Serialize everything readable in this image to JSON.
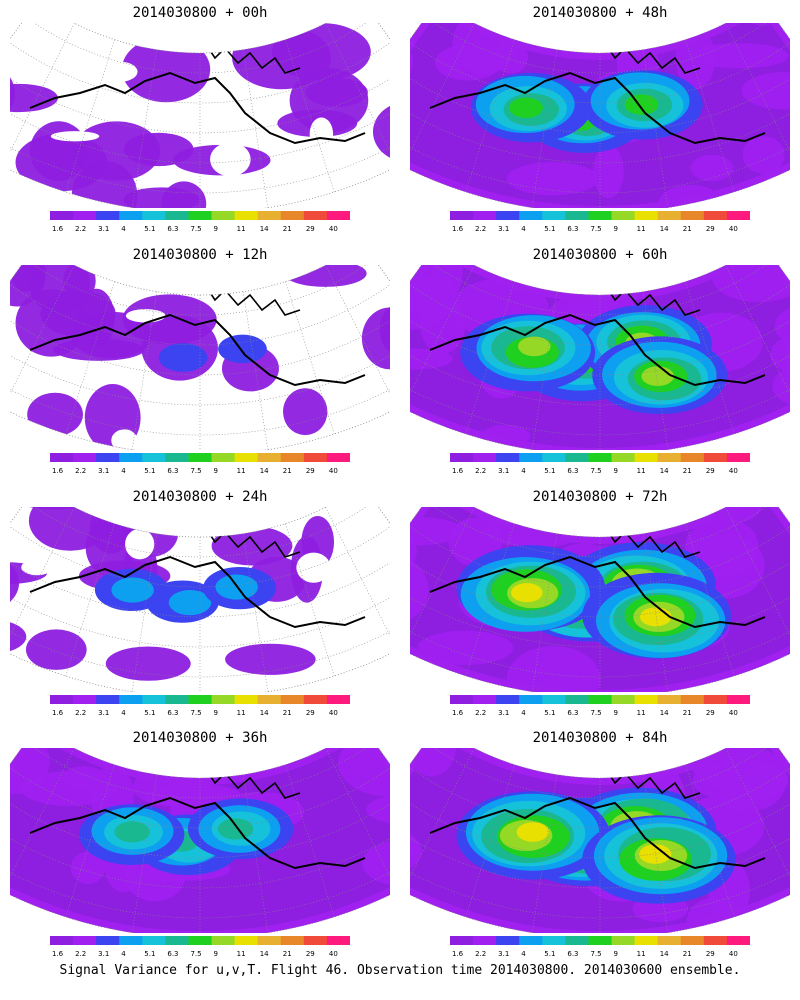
{
  "colors": [
    "#8e1ee0",
    "#a020f0",
    "#3b44f0",
    "#0ea0f0",
    "#16c2da",
    "#1ab890",
    "#20d020",
    "#96d826",
    "#e8e000",
    "#e8b030",
    "#e8862a",
    "#f04a3a",
    "#ff1a7e"
  ],
  "colorbar_labels": [
    "1.6",
    "2.2",
    "3.1",
    "4",
    "5.1",
    "6.3",
    "7.5",
    "9",
    "11",
    "14",
    "21",
    "29",
    "40"
  ],
  "footer": "Signal Variance for u,v,T. Flight 46. Observation time 2014030800. 2014030600 ensemble.",
  "chart_data": [
    {
      "type": "heatmap",
      "title": "2014030800 + 00h",
      "intensity": 0.15,
      "scale": "colorbar 1.6-40",
      "legend": "bottom"
    },
    {
      "type": "heatmap",
      "title": "2014030800 + 48h",
      "intensity": 0.6,
      "scale": "colorbar 1.6-40",
      "legend": "bottom"
    },
    {
      "type": "heatmap",
      "title": "2014030800 + 12h",
      "intensity": 0.25,
      "scale": "colorbar 1.6-40",
      "legend": "bottom"
    },
    {
      "type": "heatmap",
      "title": "2014030800 + 60h",
      "intensity": 0.7,
      "scale": "colorbar 1.6-40",
      "legend": "bottom"
    },
    {
      "type": "heatmap",
      "title": "2014030800 + 24h",
      "intensity": 0.35,
      "scale": "colorbar 1.6-40",
      "legend": "bottom"
    },
    {
      "type": "heatmap",
      "title": "2014030800 + 72h",
      "intensity": 0.8,
      "scale": "colorbar 1.6-40",
      "legend": "bottom"
    },
    {
      "type": "heatmap",
      "title": "2014030800 + 36h",
      "intensity": 0.5,
      "scale": "colorbar 1.6-40",
      "legend": "bottom"
    },
    {
      "type": "heatmap",
      "title": "2014030800 + 84h",
      "intensity": 0.85,
      "scale": "colorbar 1.6-40",
      "legend": "bottom"
    }
  ]
}
